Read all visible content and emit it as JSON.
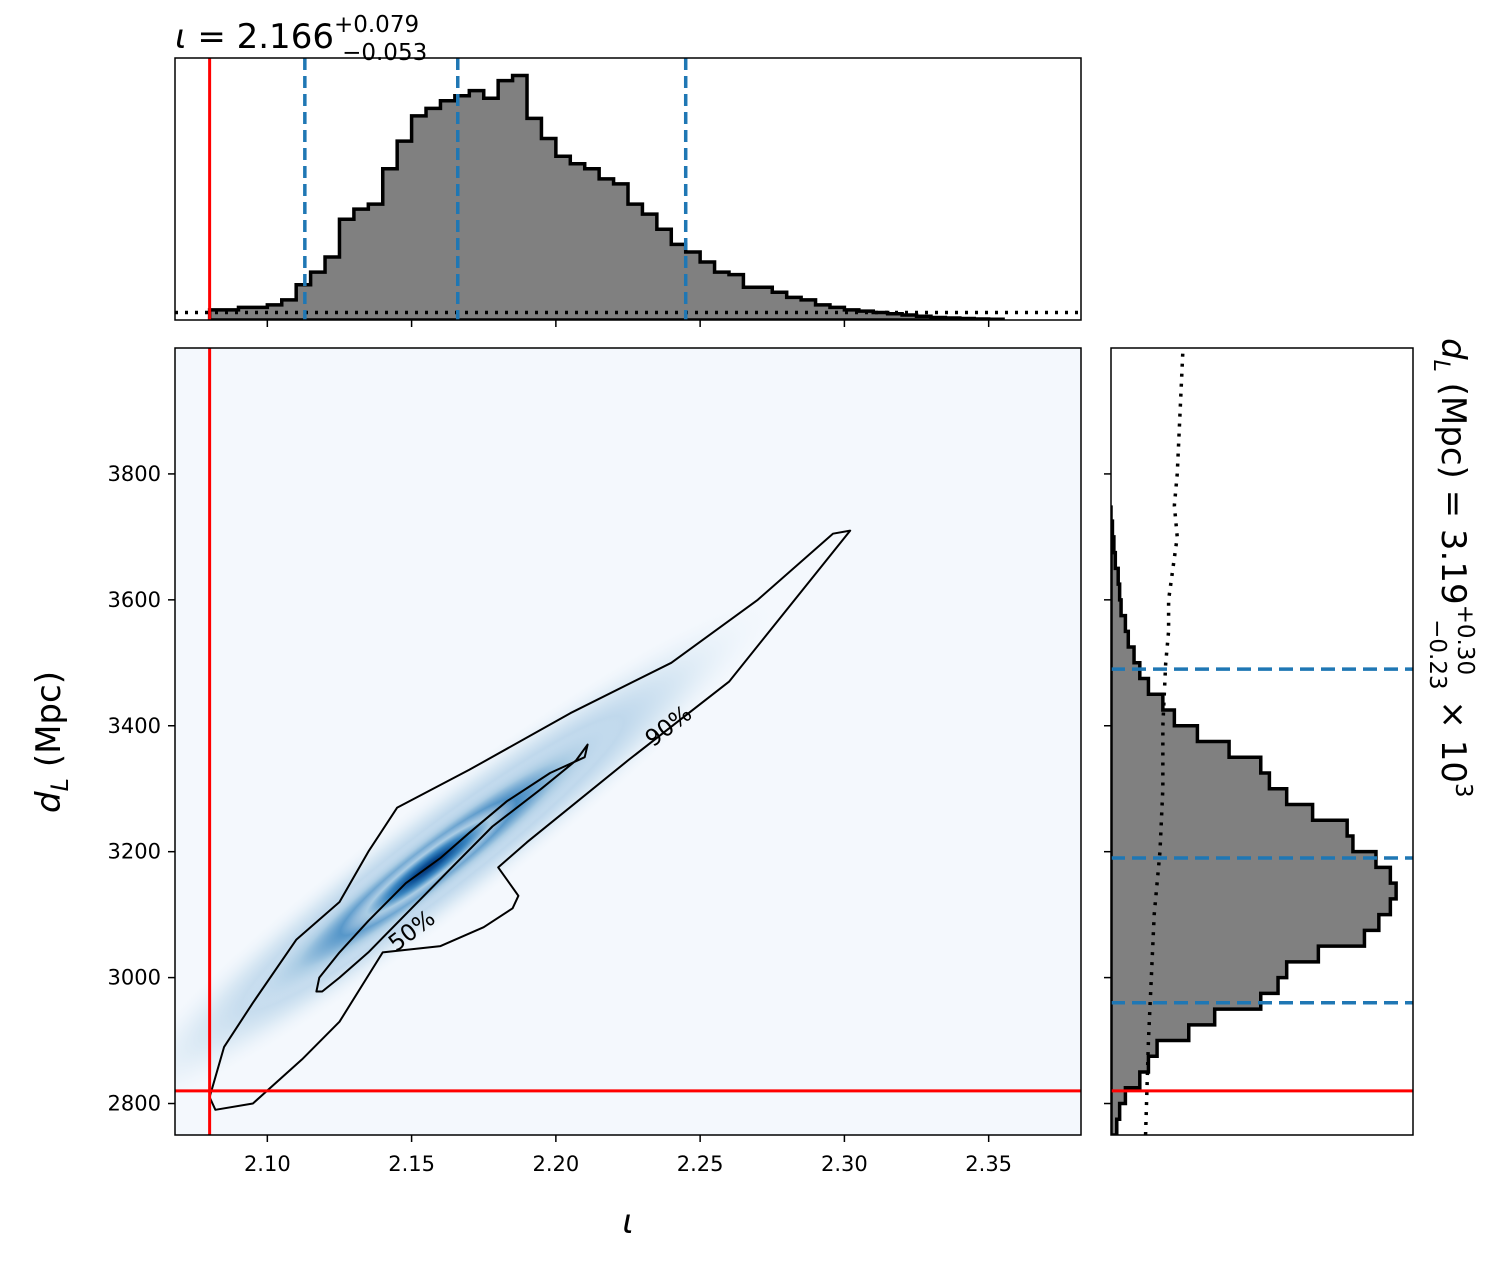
{
  "chart_data": [
    {
      "type": "histogram",
      "panel": "top-marginal",
      "title": {
        "param": "ι",
        "eq": " = 2.166",
        "sup": "+0.079",
        "sub": "−0.053"
      },
      "bins": {
        "edges_start": 2.08,
        "bin_width": 0.005,
        "heights": [
          0.04,
          0.04,
          0.05,
          0.05,
          0.06,
          0.08,
          0.14,
          0.19,
          0.25,
          0.4,
          0.44,
          0.46,
          0.6,
          0.71,
          0.81,
          0.84,
          0.87,
          0.89,
          0.91,
          0.88,
          0.95,
          0.97,
          0.8,
          0.72,
          0.65,
          0.62,
          0.6,
          0.56,
          0.54,
          0.46,
          0.42,
          0.36,
          0.3,
          0.27,
          0.23,
          0.19,
          0.18,
          0.13,
          0.13,
          0.11,
          0.09,
          0.08,
          0.06,
          0.05,
          0.04,
          0.035,
          0.03,
          0.025,
          0.02,
          0.015,
          0.01,
          0.008,
          0.006,
          0.004,
          0.003
        ]
      },
      "quantiles": [
        2.113,
        2.166,
        2.245
      ],
      "truth": 2.08,
      "prior_level": 0.03,
      "xlim": [
        2.068,
        2.382
      ]
    },
    {
      "type": "heatmap",
      "panel": "joint",
      "xlabel": "ι",
      "ylabel": {
        "var": "d",
        "sub": "L",
        "unit": " (Mpc)"
      },
      "xlim": [
        2.068,
        2.382
      ],
      "ylim": [
        2750,
        4000
      ],
      "xticks": [
        "2.10",
        "2.15",
        "2.20",
        "2.25",
        "2.30",
        "2.35"
      ],
      "yticks": [
        "2800",
        "3000",
        "3200",
        "3400",
        "3600",
        "3800"
      ],
      "density": {
        "center_x": 2.16,
        "center_y": 3190,
        "slope": 3480
      },
      "contours": [
        {
          "label": "50%",
          "points": [
            [
              2.119,
              2978
            ],
            [
              2.125,
              3000
            ],
            [
              2.135,
              3040
            ],
            [
              2.15,
              3110
            ],
            [
              2.165,
              3180
            ],
            [
              2.178,
              3240
            ],
            [
              2.195,
              3300
            ],
            [
              2.207,
              3345
            ],
            [
              2.211,
              3370
            ],
            [
              2.21,
              3350
            ],
            [
              2.198,
              3325
            ],
            [
              2.183,
              3280
            ],
            [
              2.17,
              3230
            ],
            [
              2.16,
              3190
            ],
            [
              2.148,
              3150
            ],
            [
              2.135,
              3090
            ],
            [
              2.125,
              3040
            ],
            [
              2.118,
              3000
            ],
            [
              2.117,
              2978
            ]
          ]
        },
        {
          "label": "90%",
          "points": [
            [
              2.095,
              2800
            ],
            [
              2.112,
              2870
            ],
            [
              2.125,
              2930
            ],
            [
              2.14,
              3040
            ],
            [
              2.16,
              3050
            ],
            [
              2.175,
              3080
            ],
            [
              2.185,
              3110
            ],
            [
              2.187,
              3130
            ],
            [
              2.18,
              3175
            ],
            [
              2.19,
              3215
            ],
            [
              2.225,
              3345
            ],
            [
              2.26,
              3470
            ],
            [
              2.302,
              3710
            ],
            [
              2.296,
              3705
            ],
            [
              2.27,
              3600
            ],
            [
              2.24,
              3500
            ],
            [
              2.205,
              3420
            ],
            [
              2.17,
              3330
            ],
            [
              2.145,
              3270
            ],
            [
              2.135,
              3200
            ],
            [
              2.125,
              3120
            ],
            [
              2.11,
              3060
            ],
            [
              2.095,
              2960
            ],
            [
              2.085,
              2890
            ],
            [
              2.08,
              2810
            ],
            [
              2.082,
              2790
            ]
          ]
        }
      ],
      "contour_labels": [
        "50%",
        "90%"
      ],
      "truth": {
        "x": 2.08,
        "y": 2820
      }
    },
    {
      "type": "histogram",
      "panel": "right-marginal",
      "title": {
        "param": "d",
        "sub_param": "L",
        "eq": " (Mpc) = 3.19",
        "sup": "+0.30",
        "sub": "−0.23",
        "suffix": " × 10",
        "exp": "3"
      },
      "bins": {
        "edges_start": 2750,
        "bin_width": 25,
        "heights": [
          0.02,
          0.03,
          0.05,
          0.1,
          0.13,
          0.16,
          0.27,
          0.36,
          0.52,
          0.58,
          0.61,
          0.72,
          0.88,
          0.93,
          0.97,
          0.99,
          0.97,
          0.92,
          0.84,
          0.82,
          0.7,
          0.61,
          0.55,
          0.52,
          0.41,
          0.3,
          0.22,
          0.18,
          0.13,
          0.1,
          0.08,
          0.06,
          0.05,
          0.035,
          0.03,
          0.025,
          0.015,
          0.01,
          0.005,
          0.0
        ]
      },
      "quantiles": [
        2960,
        3190,
        3490
      ],
      "truth": 2820,
      "ylim": [
        2750,
        4000
      ]
    }
  ]
}
